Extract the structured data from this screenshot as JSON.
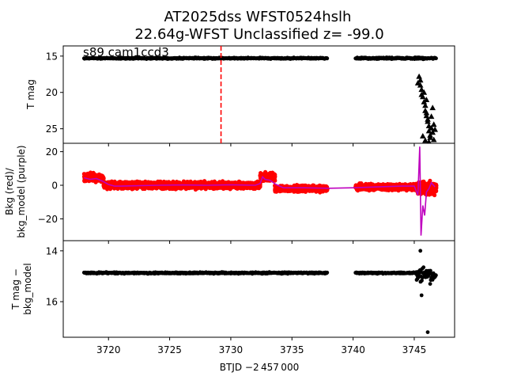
{
  "chart_data": {
    "title_line1": "AT2025dss  WFST0524hslh",
    "title_line2": "22.64g-WFST Unclassified z= -99.0",
    "xlabel": "BTJD −2 457 000",
    "xlim": [
      3716.3,
      3748.3
    ],
    "x_ticks": [
      3720,
      3725,
      3730,
      3735,
      3740,
      3745
    ],
    "x_tick_labels": [
      "3720",
      "3725",
      "3730",
      "3735",
      "3740",
      "3745"
    ],
    "marker_line": {
      "x": 3729.2,
      "color": "#ff0000",
      "style": "dashed"
    },
    "panels": [
      {
        "id": "tmag",
        "type": "scatter",
        "ylabel": "T mag",
        "inverted": true,
        "ylim": [
          27.0,
          13.6
        ],
        "y_ticks": [
          15,
          20,
          25
        ],
        "y_tick_labels": [
          "15",
          "20",
          "25"
        ],
        "annotation": "s89 cam1ccd3",
        "series": [
          {
            "marker": "circle",
            "color": "#000000",
            "segments": [
              {
                "x": [
                  3718.0,
                  3737.9
                ],
                "y": 15.3,
                "jitter": 0.12
              },
              {
                "x": [
                  3740.2,
                  3746.8
                ],
                "y": 15.3,
                "jitter": 0.15
              }
            ]
          },
          {
            "marker": "triangle",
            "color": "#000000",
            "points": [
              [
                3745.4,
                17.8
              ],
              [
                3745.5,
                18.3
              ],
              [
                3745.5,
                19.0
              ],
              [
                3745.6,
                19.6
              ],
              [
                3745.6,
                20.3
              ],
              [
                3745.7,
                20.6
              ],
              [
                3745.8,
                21.3
              ],
              [
                3745.9,
                21.8
              ],
              [
                3745.9,
                22.5
              ],
              [
                3746.0,
                22.8
              ],
              [
                3746.0,
                23.2
              ],
              [
                3746.1,
                23.7
              ],
              [
                3746.1,
                24.0
              ],
              [
                3746.2,
                24.6
              ],
              [
                3746.2,
                25.3
              ],
              [
                3746.3,
                25.9
              ],
              [
                3746.3,
                26.2
              ],
              [
                3746.4,
                24.9
              ],
              [
                3746.4,
                23.3
              ],
              [
                3746.5,
                25.5
              ],
              [
                3746.5,
                22.1
              ],
              [
                3746.6,
                24.4
              ],
              [
                3746.6,
                26.5
              ],
              [
                3746.7,
                25.1
              ],
              [
                3745.7,
                26.0
              ],
              [
                3745.9,
                26.6
              ],
              [
                3746.2,
                26.8
              ],
              [
                3745.3,
                18.7
              ],
              [
                3745.8,
                20.0
              ],
              [
                3746.0,
                21.0
              ]
            ]
          }
        ]
      },
      {
        "id": "bkg",
        "type": "scatter+line",
        "ylabel_line1": "Bkg (red)/",
        "ylabel_line2": "bkg_model (purple)",
        "ylim": [
          -33,
          25
        ],
        "y_ticks": [
          20,
          0,
          -20
        ],
        "y_tick_labels": [
          "20",
          "0",
          "−20"
        ],
        "series": [
          {
            "name": "Bkg",
            "marker": "circle",
            "color": "#ff0000",
            "segments": [
              {
                "x": [
                  3718.0,
                  3719.6
                ],
                "center": 4.5,
                "spread": 6.5
              },
              {
                "x": [
                  3719.6,
                  3732.4
                ],
                "center": 0.0,
                "spread": 5.0
              },
              {
                "x": [
                  3732.4,
                  3733.6
                ],
                "center": 5.0,
                "spread": 6.5
              },
              {
                "x": [
                  3733.6,
                  3737.9
                ],
                "center": -2.0,
                "spread": 4.5
              },
              {
                "x": [
                  3740.2,
                  3745.2
                ],
                "center": -1.0,
                "spread": 4.5
              },
              {
                "x": [
                  3745.2,
                  3746.8
                ],
                "center": -2.0,
                "spread": 10.0
              }
            ]
          },
          {
            "name": "bkg_model",
            "type": "line",
            "color": "#bf00bf",
            "points": [
              [
                3718.0,
                4.5
              ],
              [
                3718.5,
                3.5
              ],
              [
                3719.0,
                4.0
              ],
              [
                3719.5,
                2.5
              ],
              [
                3720.0,
                0.5
              ],
              [
                3720.5,
                -0.5
              ],
              [
                3721.0,
                -0.5
              ],
              [
                3722.0,
                -0.3
              ],
              [
                3724.0,
                0.0
              ],
              [
                3726.0,
                0.2
              ],
              [
                3728.0,
                0.0
              ],
              [
                3730.0,
                0.3
              ],
              [
                3732.0,
                0.0
              ],
              [
                3732.4,
                1.0
              ],
              [
                3732.6,
                5.0
              ],
              [
                3732.8,
                3.5
              ],
              [
                3733.2,
                3.0
              ],
              [
                3733.7,
                0.5
              ],
              [
                3734.3,
                -1.5
              ],
              [
                3736.0,
                -1.5
              ],
              [
                3738.0,
                -1.8
              ],
              [
                3740.0,
                -1.5
              ],
              [
                3742.0,
                -1.0
              ],
              [
                3744.0,
                -0.5
              ],
              [
                3745.0,
                -0.5
              ],
              [
                3745.3,
                -6.0
              ],
              [
                3745.45,
                23.0
              ],
              [
                3745.55,
                -30.0
              ],
              [
                3745.7,
                -12.0
              ],
              [
                3745.85,
                -18.0
              ],
              [
                3746.0,
                -4.0
              ],
              [
                3746.2,
                -2.0
              ],
              [
                3746.4,
                1.5
              ],
              [
                3746.7,
                -1.0
              ]
            ]
          }
        ]
      },
      {
        "id": "diff",
        "type": "scatter",
        "ylabel_line1": "T mag −",
        "ylabel_line2": "bkg_model",
        "inverted": true,
        "ylim": [
          17.4,
          13.6
        ],
        "y_ticks": [
          14,
          16
        ],
        "y_tick_labels": [
          "14",
          "16"
        ],
        "series": [
          {
            "marker": "circle",
            "color": "#000000",
            "segments": [
              {
                "x": [
                  3718.0,
                  3737.9
                ],
                "y": 14.87,
                "jitter": 0.04
              },
              {
                "x": [
                  3740.2,
                  3745.2
                ],
                "y": 14.87,
                "jitter": 0.04
              },
              {
                "x": [
                  3745.2,
                  3746.8
                ],
                "y": 14.95,
                "jitter": 0.35
              }
            ],
            "points": [
              [
                3745.6,
                15.75
              ],
              [
                3746.1,
                17.2
              ],
              [
                3745.5,
                14.0
              ],
              [
                3746.3,
                15.3
              ]
            ]
          }
        ]
      }
    ]
  }
}
